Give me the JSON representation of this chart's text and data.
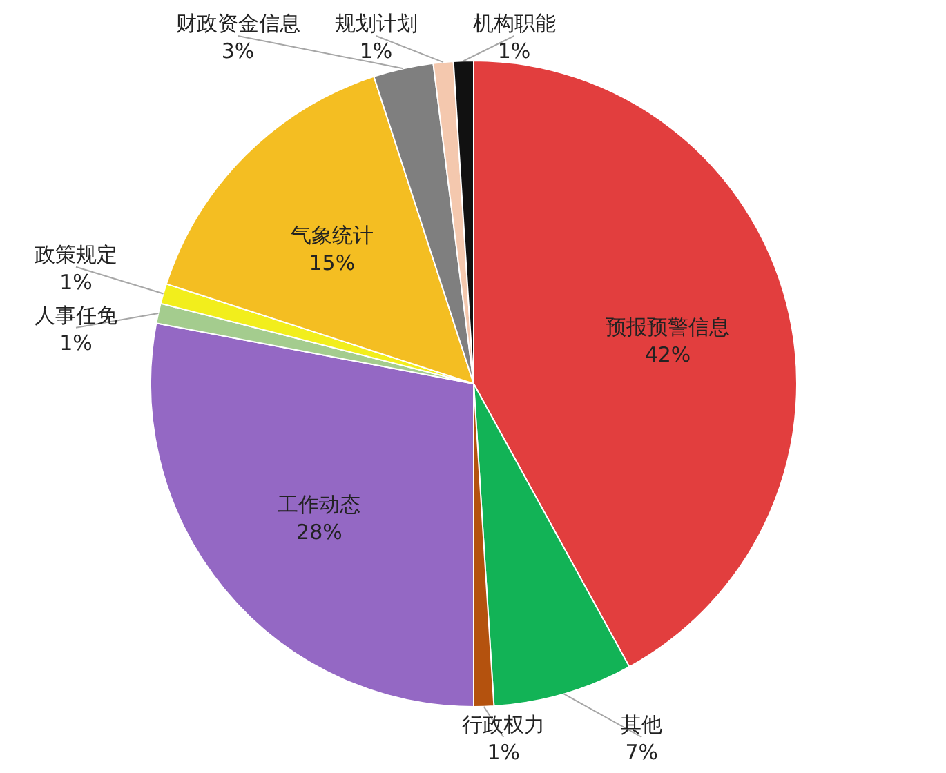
{
  "chart_data": {
    "type": "pie",
    "categories": [
      "预报预警信息",
      "其他",
      "行政权力",
      "工作动态",
      "人事任免",
      "政策规定",
      "气象统计",
      "财政资金信息",
      "规划计划",
      "机构职能"
    ],
    "values": [
      42,
      7,
      1,
      28,
      1,
      1,
      15,
      3,
      1,
      1
    ],
    "value_labels": [
      "42%",
      "7%",
      "1%",
      "28%",
      "1%",
      "1%",
      "15%",
      "3%",
      "1%",
      "1%"
    ],
    "colors": [
      "#e23e3e",
      "#12b356",
      "#b4520e",
      "#9468c4",
      "#a4cc8e",
      "#f2ee1c",
      "#f4be22",
      "#7f7f7f",
      "#f4c8ae",
      "#111111"
    ]
  }
}
